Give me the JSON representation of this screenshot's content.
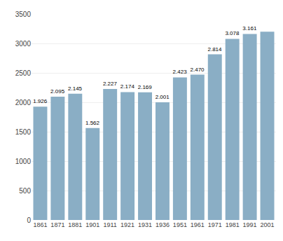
{
  "chart_data": {
    "type": "bar",
    "categories": [
      "1861",
      "1871",
      "1881",
      "1901",
      "1911",
      "1921",
      "1931",
      "1936",
      "1951",
      "1961",
      "1971",
      "1981",
      "1991",
      "2001"
    ],
    "values": [
      1926,
      2095,
      2145,
      1562,
      2227,
      2174,
      2169,
      2001,
      2423,
      2470,
      2814,
      3078,
      3161,
      3200
    ],
    "value_labels": [
      "1.926",
      "2.095",
      "2.145",
      "1.562",
      "2.227",
      "2.174",
      "2.169",
      "2.001",
      "2.423",
      "2.470",
      "2.814",
      "3.078",
      "3.161",
      null
    ],
    "color": "#8aaec5",
    "ylim": [
      0,
      3500
    ],
    "yticks": [
      0,
      500,
      1000,
      1500,
      2000,
      2500,
      3000,
      3500
    ],
    "grid": true
  }
}
